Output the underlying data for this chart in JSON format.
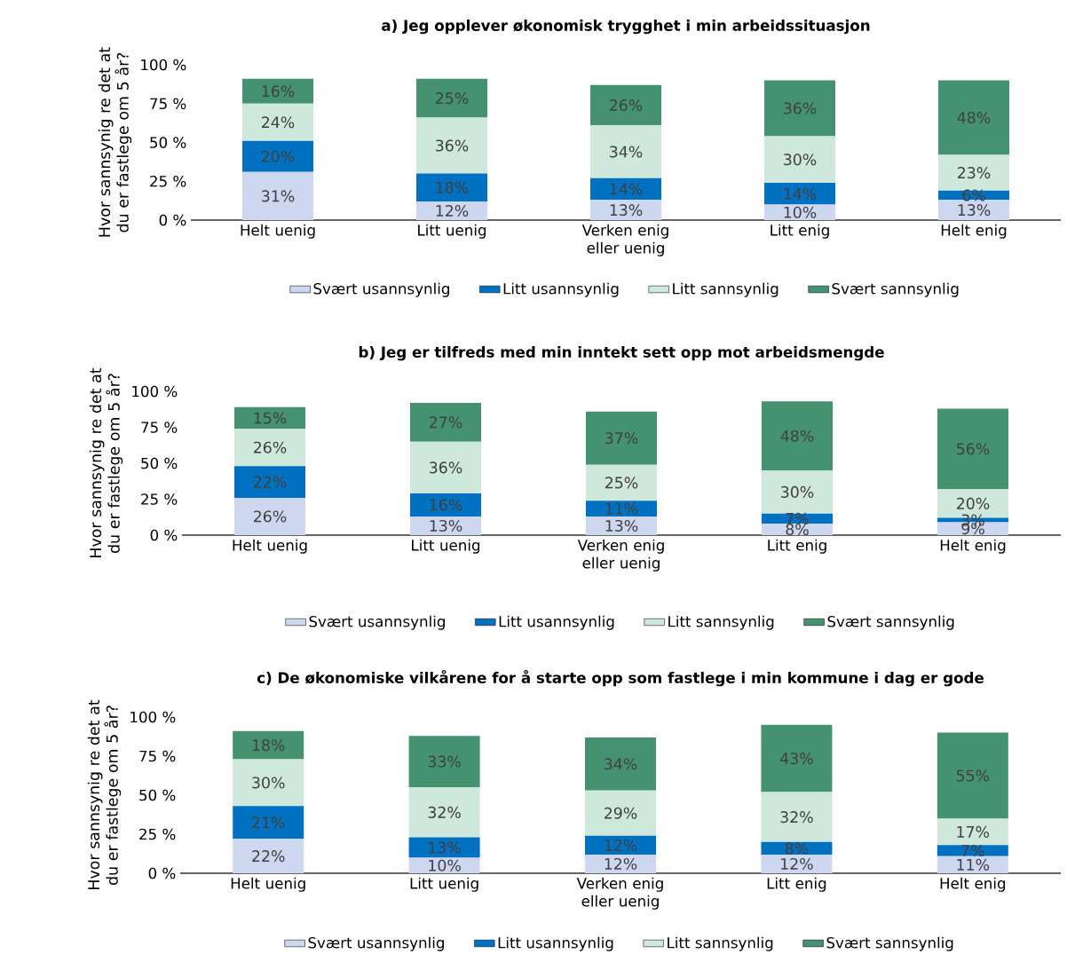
{
  "chart_data": [
    {
      "type": "bar",
      "stacked": true,
      "title": "a) Jeg opplever økonomisk trygghet i min arbeidssituasjon",
      "ylabel": "Hvor sannsynig re det at du er fastlege om 5 år?",
      "categories": [
        "Helt uenig",
        "Litt uenig",
        "Verken enig eller uenig",
        "Litt enig",
        "Helt enig"
      ],
      "ylim": [
        0,
        100
      ],
      "yticks": [
        {
          "value": 0,
          "label": "0 %"
        },
        {
          "value": 25,
          "label": "25 %"
        },
        {
          "value": 50,
          "label": "50 %"
        },
        {
          "value": 75,
          "label": "75 %"
        },
        {
          "value": 100,
          "label": "100 %"
        }
      ],
      "legend": "bottom",
      "series": [
        {
          "name": "Svært usannsynlig",
          "color": "#cdd7ef",
          "values": [
            31,
            12,
            13,
            10,
            13
          ],
          "value_labels": [
            "31%",
            "12%",
            "13%",
            "10%",
            "13%"
          ]
        },
        {
          "name": "Litt usannsynlig",
          "color": "#0070c0",
          "values": [
            20,
            18,
            14,
            14,
            6
          ],
          "value_labels": [
            "20%",
            "18%",
            "14%",
            "14%",
            "6%"
          ]
        },
        {
          "name": "Litt sannsynlig",
          "color": "#cfe8dc",
          "values": [
            24,
            36,
            34,
            30,
            23
          ],
          "value_labels": [
            "24%",
            "36%",
            "34%",
            "30%",
            "23%"
          ]
        },
        {
          "name": "Svært sannsynlig",
          "color": "#459270",
          "values": [
            16,
            25,
            26,
            36,
            48
          ],
          "value_labels": [
            "16%",
            "25%",
            "26%",
            "36%",
            "48%"
          ]
        }
      ]
    },
    {
      "type": "bar",
      "stacked": true,
      "title": "b) Jeg er tilfreds med min inntekt sett opp mot arbeidsmengde",
      "ylabel": "Hvor sannsynig re det at du er fastlege om 5 år?",
      "categories": [
        "Helt uenig",
        "Litt uenig",
        "Verken enig eller uenig",
        "Litt enig",
        "Helt enig"
      ],
      "ylim": [
        0,
        100
      ],
      "yticks": [
        {
          "value": 0,
          "label": "0 %"
        },
        {
          "value": 25,
          "label": "25 %"
        },
        {
          "value": 50,
          "label": "50 %"
        },
        {
          "value": 75,
          "label": "75 %"
        },
        {
          "value": 100,
          "label": "100 %"
        }
      ],
      "legend": "bottom",
      "series": [
        {
          "name": "Svært usannsynlig",
          "color": "#cdd7ef",
          "values": [
            26,
            13,
            13,
            8,
            9
          ],
          "value_labels": [
            "26%",
            "13%",
            "13%",
            "8%",
            "9%"
          ]
        },
        {
          "name": "Litt usannsynlig",
          "color": "#0070c0",
          "values": [
            22,
            16,
            11,
            7,
            3
          ],
          "value_labels": [
            "22%",
            "16%",
            "11%",
            "7%",
            "3%"
          ]
        },
        {
          "name": "Litt sannsynlig",
          "color": "#cfe8dc",
          "values": [
            26,
            36,
            25,
            30,
            20
          ],
          "value_labels": [
            "26%",
            "36%",
            "25%",
            "30%",
            "20%"
          ]
        },
        {
          "name": "Svært sannsynlig",
          "color": "#459270",
          "values": [
            15,
            27,
            37,
            48,
            56
          ],
          "value_labels": [
            "15%",
            "27%",
            "37%",
            "48%",
            "56%"
          ]
        }
      ]
    },
    {
      "type": "bar",
      "stacked": true,
      "title": "c) De økonomiske vilkårene for å starte opp som fastlege i min kommune i dag er gode",
      "ylabel": "Hvor sannsynig re det at du er fastlege om 5 år?",
      "categories": [
        "Helt uenig",
        "Litt uenig",
        "Verken enig eller uenig",
        "Litt enig",
        "Helt enig"
      ],
      "ylim": [
        0,
        100
      ],
      "yticks": [
        {
          "value": 0,
          "label": "0 %"
        },
        {
          "value": 25,
          "label": "25 %"
        },
        {
          "value": 50,
          "label": "50 %"
        },
        {
          "value": 75,
          "label": "75 %"
        },
        {
          "value": 100,
          "label": "100 %"
        }
      ],
      "legend": "bottom",
      "series": [
        {
          "name": "Svært usannsynlig",
          "color": "#cdd7ef",
          "values": [
            22,
            10,
            12,
            12,
            11
          ],
          "value_labels": [
            "22%",
            "10%",
            "12%",
            "12%",
            "11%"
          ]
        },
        {
          "name": "Litt usannsynlig",
          "color": "#0070c0",
          "values": [
            21,
            13,
            12,
            8,
            7
          ],
          "value_labels": [
            "21%",
            "13%",
            "12%",
            "8%",
            "7%"
          ]
        },
        {
          "name": "Litt sannsynlig",
          "color": "#cfe8dc",
          "values": [
            30,
            32,
            29,
            32,
            17
          ],
          "value_labels": [
            "30%",
            "32%",
            "29%",
            "32%",
            "17%"
          ]
        },
        {
          "name": "Svært sannsynlig",
          "color": "#459270",
          "values": [
            18,
            33,
            34,
            43,
            55
          ],
          "value_labels": [
            "18%",
            "33%",
            "34%",
            "43%",
            "55%"
          ]
        }
      ]
    }
  ]
}
